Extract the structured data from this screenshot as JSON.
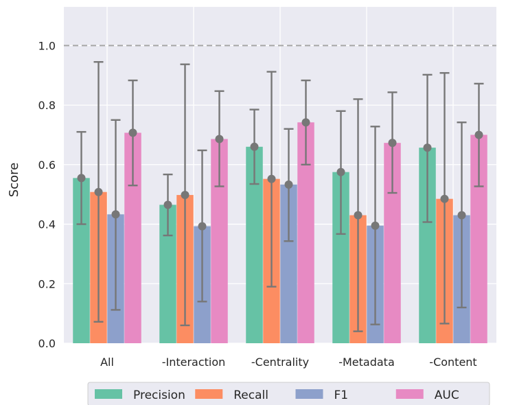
{
  "chart_data": {
    "type": "bar",
    "ylabel": "Score",
    "xlabel": "",
    "ylim": [
      0,
      1.13
    ],
    "yticks": [
      "0.0",
      "0.2",
      "0.4",
      "0.6",
      "0.8",
      "1.0"
    ],
    "reference_line": 1.0,
    "grid": true,
    "legend_position": "bottom",
    "categories": [
      "All",
      "-Interaction",
      "-Centrality",
      "-Metadata",
      "-Content"
    ],
    "series": [
      {
        "name": "Precision",
        "color": "#66c2a5",
        "values": [
          0.555,
          0.465,
          0.66,
          0.575,
          0.657
        ],
        "err_low": [
          0.4,
          0.362,
          0.535,
          0.367,
          0.407
        ],
        "err_high": [
          0.71,
          0.567,
          0.785,
          0.78,
          0.902
        ]
      },
      {
        "name": "Recall",
        "color": "#fc8d62",
        "values": [
          0.508,
          0.498,
          0.552,
          0.43,
          0.485
        ],
        "err_low": [
          0.072,
          0.06,
          0.19,
          0.04,
          0.066
        ],
        "err_high": [
          0.945,
          0.937,
          0.912,
          0.82,
          0.908
        ]
      },
      {
        "name": "F1",
        "color": "#8da0cb",
        "values": [
          0.433,
          0.393,
          0.533,
          0.395,
          0.43
        ],
        "err_low": [
          0.112,
          0.14,
          0.343,
          0.063,
          0.12
        ],
        "err_high": [
          0.75,
          0.648,
          0.72,
          0.728,
          0.742
        ]
      },
      {
        "name": "AUC",
        "color": "#e78ac3",
        "values": [
          0.707,
          0.686,
          0.742,
          0.673,
          0.7
        ],
        "err_low": [
          0.53,
          0.527,
          0.6,
          0.505,
          0.527
        ],
        "err_high": [
          0.883,
          0.847,
          0.883,
          0.843,
          0.872
        ]
      }
    ]
  }
}
